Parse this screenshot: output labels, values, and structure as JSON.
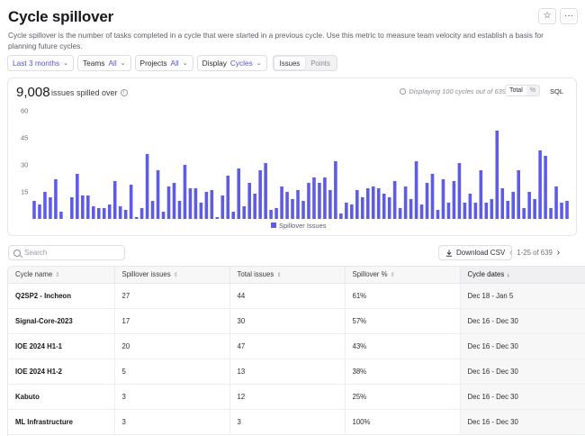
{
  "page": {
    "title": "Cycle spillover",
    "description": "Cycle spillover is the number of tasks completed in a cycle that were started in a previous cycle. Use this metric to measure team velocity and establish a basis for planning future cycles.",
    "actions": {
      "star_icon": "star-icon",
      "more_icon": "ellipsis-icon"
    }
  },
  "filters": {
    "range": "Last 3 months",
    "teams_label": "Teams",
    "teams_value": "All",
    "projects_label": "Projects",
    "projects_value": "All",
    "display_label": "Display",
    "display_value": "Cycles",
    "segment": [
      "Issues",
      "Points"
    ]
  },
  "summary": {
    "count": "9,008",
    "label": "issues spilled over",
    "displaying": "Displaying 100 cycles out of 639",
    "toggle": [
      "Total",
      "%"
    ],
    "sql": "SQL"
  },
  "chart_data": {
    "type": "bar",
    "ylim": [
      0,
      60
    ],
    "yticks": [
      15,
      30,
      45,
      60
    ],
    "series": [
      {
        "name": "Spillover Issues",
        "color": "#5e5ce6",
        "values": [
          10,
          8,
          15,
          12,
          22,
          4,
          0,
          12,
          25,
          13,
          13,
          7,
          6,
          6,
          8,
          21,
          7,
          5,
          19,
          1,
          6,
          36,
          10,
          27,
          4,
          18,
          20,
          10,
          30,
          17,
          17,
          9,
          15,
          16,
          1,
          13,
          24,
          4,
          28,
          7,
          20,
          14,
          27,
          31,
          5,
          6,
          18,
          15,
          11,
          16,
          10,
          20,
          23,
          20,
          23,
          16,
          32,
          3,
          9,
          8,
          16,
          12,
          17,
          18,
          17,
          14,
          12,
          21,
          6,
          18,
          11,
          32,
          8,
          20,
          25,
          5,
          22,
          9,
          21,
          31,
          9,
          14,
          9,
          27,
          9,
          11,
          49,
          17,
          10,
          15,
          27,
          6,
          15,
          11,
          38,
          35,
          6,
          18,
          9,
          10
        ]
      }
    ]
  },
  "toolbar": {
    "search_placeholder": "Search",
    "download_label": "Download CSV",
    "pager_text": "1-25 of 639"
  },
  "table": {
    "columns": [
      "Cycle name",
      "Spillover issues",
      "Total issues",
      "Spillover %",
      "Cycle dates"
    ],
    "rows": [
      [
        "Q2SP2 - Incheon",
        "27",
        "44",
        "61%",
        "Dec 18 - Jan 5"
      ],
      [
        "Signal-Core-2023",
        "17",
        "30",
        "57%",
        "Dec 16 - Dec 30"
      ],
      [
        "IOE 2024 H1-1",
        "20",
        "47",
        "43%",
        "Dec 16 - Dec 30"
      ],
      [
        "IOE 2024 H1-2",
        "5",
        "13",
        "38%",
        "Dec 16 - Dec 30"
      ],
      [
        "Kabuto",
        "3",
        "12",
        "25%",
        "Dec 16 - Dec 30"
      ],
      [
        "ML Infrastructure",
        "3",
        "3",
        "100%",
        "Dec 16 - Dec 30"
      ]
    ]
  }
}
